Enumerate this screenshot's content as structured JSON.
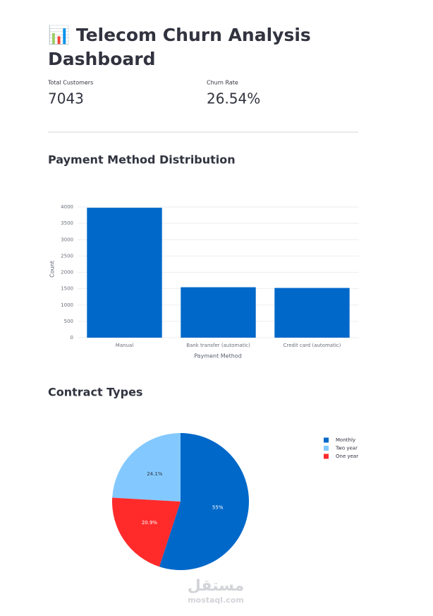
{
  "header": {
    "title_line1": "📊 Telecom Churn Analysis",
    "title_line2": "Dashboard"
  },
  "metrics": [
    {
      "label": "Total Customers",
      "value": "7043"
    },
    {
      "label": "Churn Rate",
      "value": "26.54%"
    }
  ],
  "chart_data": [
    {
      "type": "bar",
      "title": "Payment Method Distribution",
      "categories": [
        "Manual",
        "Bank transfer (automatic)",
        "Credit card (automatic)"
      ],
      "values": [
        3977,
        1544,
        1522
      ],
      "color": "#0068c9",
      "x_label": "Payment Method",
      "y_label": "Count",
      "ylim": [
        0,
        4186
      ],
      "yticks": [
        0,
        500,
        1000,
        1500,
        2000,
        2500,
        3000,
        3500,
        4000
      ],
      "grid": true
    },
    {
      "type": "pie",
      "title": "Contract Types",
      "categories": [
        "Monthly",
        "Two year",
        "One year"
      ],
      "values": [
        55,
        24.1,
        20.9
      ],
      "value_labels": [
        "55%",
        "24.1%",
        "20.9%"
      ],
      "colors": [
        "#0068c9",
        "#83c9ff",
        "#ff2b2b"
      ],
      "legend": "top-right"
    }
  ],
  "watermark": {
    "arabic": "مستقل",
    "latin": "mostaql.com"
  }
}
